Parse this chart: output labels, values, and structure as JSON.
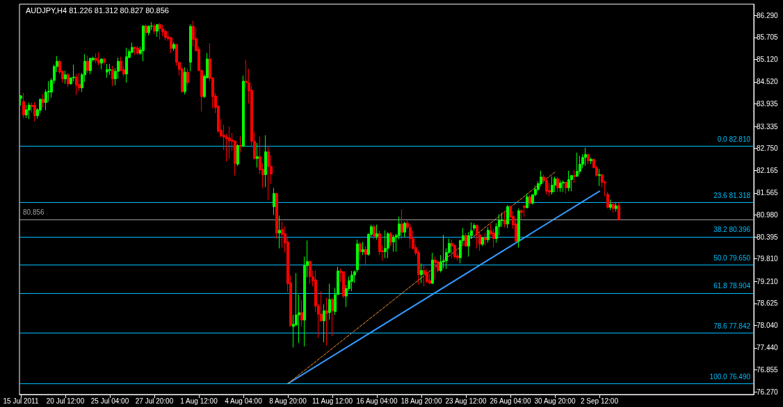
{
  "chart_data": {
    "type": "candlestick",
    "title": "AUDJPY,H4 81.226 81.312 80.827 80.856",
    "categories": [
      "15 Jul 2011",
      null,
      null,
      null,
      null,
      null,
      null,
      null,
      null,
      null,
      null,
      null,
      null,
      null,
      null,
      null,
      "20 Jul 12:00",
      null,
      null,
      null,
      null,
      null,
      null,
      null,
      null,
      null,
      null,
      null,
      null,
      null,
      null,
      null,
      "25 Jul 04:00",
      null,
      null,
      null,
      null,
      null,
      null,
      null,
      null,
      null,
      null,
      null,
      null,
      null,
      null,
      null,
      "27 Jul 20:00",
      null,
      null,
      null,
      null,
      null,
      null,
      null,
      null,
      null,
      null,
      null,
      null,
      null,
      null,
      null,
      "1 Aug 12:00",
      null,
      null,
      null,
      null,
      null,
      null,
      null,
      null,
      null,
      null,
      null,
      null,
      null,
      null,
      null,
      "4 Aug 04:00",
      null,
      null,
      null,
      null,
      null,
      null,
      null,
      null,
      null,
      null,
      null,
      null,
      null,
      null,
      null,
      "8 Aug 20:00",
      null,
      null,
      null,
      null,
      null,
      null,
      null,
      null,
      null,
      null,
      null,
      null,
      null,
      null,
      null,
      "11 Aug 12:00",
      null,
      null,
      null,
      null,
      null,
      null,
      null,
      null,
      null,
      null,
      null,
      null,
      null,
      null,
      null,
      "16 Aug 04:00",
      null,
      null,
      null,
      null,
      null,
      null,
      null,
      null,
      null,
      null,
      null,
      null,
      null,
      null,
      null,
      "18 Aug 20:00",
      null,
      null,
      null,
      null,
      null,
      null,
      null,
      null,
      null,
      null,
      null,
      null,
      null,
      null,
      null,
      "23 Aug 12:00",
      null,
      null,
      null,
      null,
      null,
      null,
      null,
      null,
      null,
      null,
      null,
      null,
      null,
      null,
      null,
      "26 Aug 04:00",
      null,
      null,
      null,
      null,
      null,
      null,
      null,
      null,
      null,
      null,
      null,
      null,
      null,
      null,
      null,
      "30 Aug 20:00",
      null,
      null,
      null,
      null,
      null,
      null,
      null,
      null,
      null,
      null,
      null,
      null,
      null,
      null,
      null,
      "2 Sep 12:00",
      null,
      null,
      null,
      null,
      null,
      null,
      null,
      null,
      null,
      null,
      null,
      null,
      null,
      null,
      null,
      null,
      null,
      null,
      null,
      null,
      null,
      null,
      null,
      null,
      null,
      null,
      null,
      null,
      null,
      null,
      null,
      null,
      null,
      null,
      null,
      null,
      null,
      null,
      null,
      null,
      null,
      null,
      null,
      null,
      null,
      null,
      null,
      null,
      null,
      null,
      null,
      null,
      null,
      null,
      null
    ],
    "ohlc": [
      [
        84.08,
        84.17,
        83.89,
        84.15
      ],
      [
        84.0,
        84.23,
        83.56,
        83.64
      ],
      [
        83.64,
        83.91,
        83.56,
        83.78
      ],
      [
        83.77,
        83.97,
        83.53,
        83.9
      ],
      [
        83.9,
        83.97,
        83.71,
        83.86
      ],
      [
        83.9,
        83.99,
        83.47,
        83.62
      ],
      [
        83.62,
        83.82,
        83.54,
        83.78
      ],
      [
        83.77,
        84.06,
        83.69,
        84.06
      ],
      [
        84.06,
        84.19,
        83.84,
        83.97
      ],
      [
        83.97,
        84.32,
        83.77,
        84.25
      ],
      [
        84.25,
        84.54,
        84.0,
        84.27
      ],
      [
        84.25,
        84.62,
        84.1,
        84.56
      ],
      [
        84.56,
        84.98,
        84.47,
        84.93
      ],
      [
        84.93,
        85.21,
        84.78,
        85.07
      ],
      [
        85.07,
        85.11,
        84.73,
        84.78
      ],
      [
        84.8,
        84.82,
        84.5,
        84.6
      ],
      [
        84.6,
        84.82,
        84.47,
        84.71
      ],
      [
        84.71,
        84.76,
        84.38,
        84.47
      ],
      [
        84.47,
        84.63,
        84.45,
        84.63
      ],
      [
        84.63,
        84.98,
        84.54,
        84.65
      ],
      [
        84.65,
        84.73,
        84.17,
        84.43
      ],
      [
        84.45,
        84.76,
        84.28,
        84.36
      ],
      [
        84.36,
        84.76,
        84.25,
        84.71
      ],
      [
        84.71,
        85.26,
        84.52,
        85.07
      ],
      [
        85.07,
        85.22,
        84.76,
        84.82
      ],
      [
        84.82,
        85.15,
        84.73,
        85.15
      ],
      [
        85.11,
        85.19,
        85.06,
        85.15
      ],
      [
        85.15,
        85.28,
        85.02,
        85.09
      ],
      [
        85.11,
        85.31,
        84.96,
        85.02
      ],
      [
        85.02,
        85.15,
        84.85,
        85.13
      ],
      [
        85.13,
        85.17,
        84.98,
        85.04
      ],
      [
        84.78,
        85.0,
        84.63,
        84.85
      ],
      [
        84.83,
        85.0,
        84.71,
        84.85
      ],
      [
        84.85,
        84.95,
        84.41,
        84.6
      ],
      [
        84.6,
        84.89,
        84.43,
        84.8
      ],
      [
        84.8,
        85.17,
        84.6,
        85.07
      ],
      [
        85.07,
        85.19,
        84.8,
        84.83
      ],
      [
        84.85,
        84.95,
        84.67,
        84.73
      ],
      [
        84.73,
        85.43,
        84.5,
        85.19
      ],
      [
        85.17,
        85.39,
        85.15,
        85.33
      ],
      [
        85.31,
        85.57,
        85.28,
        85.44
      ],
      [
        85.44,
        85.46,
        85.24,
        85.41
      ],
      [
        85.42,
        85.48,
        85.24,
        85.28
      ],
      [
        85.28,
        85.46,
        85.24,
        85.37
      ],
      [
        85.35,
        86.03,
        85.07,
        86.01
      ],
      [
        86.01,
        86.05,
        85.72,
        85.83
      ],
      [
        85.83,
        86.03,
        85.76,
        86.0
      ],
      [
        86.0,
        86.11,
        85.9,
        86.01
      ],
      [
        86.01,
        86.07,
        85.79,
        85.87
      ],
      [
        85.87,
        86.05,
        85.72,
        86.05
      ],
      [
        86.05,
        86.09,
        85.65,
        85.94
      ],
      [
        85.94,
        86.05,
        85.74,
        85.85
      ],
      [
        85.87,
        85.92,
        85.63,
        85.7
      ],
      [
        85.72,
        85.87,
        85.61,
        85.67
      ],
      [
        85.7,
        85.72,
        85.28,
        85.41
      ],
      [
        85.41,
        85.57,
        85.35,
        85.52
      ],
      [
        85.52,
        85.52,
        84.95,
        85.04
      ],
      [
        85.04,
        85.06,
        84.69,
        84.85
      ],
      [
        84.87,
        84.93,
        84.23,
        84.26
      ],
      [
        84.26,
        84.91,
        84.19,
        84.78
      ],
      [
        84.78,
        84.87,
        84.43,
        84.5
      ],
      [
        85.04,
        86.05,
        84.8,
        86.0
      ],
      [
        86.0,
        86.15,
        85.46,
        85.65
      ],
      [
        85.67,
        85.94,
        85.33,
        85.35
      ],
      [
        85.39,
        85.46,
        84.82,
        84.82
      ],
      [
        84.83,
        84.85,
        83.73,
        84.13
      ],
      [
        84.13,
        84.72,
        84.09,
        84.67
      ],
      [
        84.63,
        85.29,
        84.61,
        85.13
      ],
      [
        85.13,
        85.55,
        84.54,
        84.61
      ],
      [
        84.63,
        84.63,
        83.82,
        84.13
      ],
      [
        84.15,
        84.23,
        83.69,
        83.84
      ],
      [
        83.88,
        83.88,
        83.16,
        83.21
      ],
      [
        83.23,
        83.54,
        83.05,
        83.08
      ],
      [
        83.1,
        83.38,
        82.71,
        83.05
      ],
      [
        83.06,
        83.14,
        82.4,
        83.01
      ],
      [
        83.03,
        83.34,
        82.49,
        82.95
      ],
      [
        82.97,
        83.16,
        82.68,
        82.94
      ],
      [
        82.95,
        82.95,
        82.03,
        82.35
      ],
      [
        82.33,
        82.86,
        82.29,
        82.83
      ],
      [
        82.83,
        83.08,
        82.66,
        82.82
      ],
      [
        82.81,
        84.69,
        82.79,
        84.54
      ],
      [
        84.54,
        85.11,
        84.35,
        84.5
      ],
      [
        84.5,
        84.87,
        83.95,
        84.28
      ],
      [
        84.3,
        84.41,
        82.83,
        82.94
      ],
      [
        82.94,
        83.18,
        82.46,
        82.48
      ],
      [
        82.48,
        82.9,
        82.24,
        82.53
      ],
      [
        82.53,
        83.07,
        82.07,
        82.18
      ],
      [
        82.2,
        82.36,
        81.7,
        82.05
      ],
      [
        82.05,
        83.1,
        81.72,
        82.66
      ],
      [
        82.66,
        82.81,
        81.37,
        82.27
      ],
      [
        82.27,
        82.57,
        81.81,
        82.07
      ],
      [
        81.2,
        81.7,
        80.98,
        81.55
      ],
      [
        81.55,
        81.57,
        80.35,
        80.5
      ],
      [
        80.5,
        80.96,
        80.09,
        80.57
      ],
      [
        80.59,
        80.8,
        80.11,
        80.46
      ],
      [
        80.48,
        80.68,
        79.98,
        80.24
      ],
      [
        80.26,
        80.37,
        78.93,
        79.15
      ],
      [
        79.17,
        79.37,
        78.01,
        78.03
      ],
      [
        78.01,
        78.32,
        77.45,
        78.07
      ],
      [
        78.05,
        79.43,
        78.03,
        78.32
      ],
      [
        78.32,
        78.86,
        77.57,
        78.38
      ],
      [
        78.38,
        78.71,
        78.01,
        78.18
      ],
      [
        78.18,
        79.87,
        77.48,
        79.63
      ],
      [
        79.63,
        80.3,
        79.32,
        79.74
      ],
      [
        79.74,
        79.78,
        79.15,
        79.34
      ],
      [
        79.34,
        79.5,
        79.08,
        79.23
      ],
      [
        79.25,
        79.5,
        78.4,
        78.55
      ],
      [
        78.56,
        78.62,
        77.71,
        78.34
      ],
      [
        78.34,
        78.95,
        78.14,
        78.16
      ],
      [
        78.16,
        78.6,
        77.59,
        78.43
      ],
      [
        78.43,
        78.77,
        77.5,
        78.36
      ],
      [
        78.38,
        79.15,
        78.19,
        78.73
      ],
      [
        78.73,
        78.77,
        77.75,
        78.43
      ],
      [
        78.41,
        79.04,
        78.32,
        78.86
      ],
      [
        78.86,
        79.6,
        78.86,
        79.49
      ],
      [
        79.49,
        79.56,
        79.19,
        79.45
      ],
      [
        79.47,
        79.47,
        78.77,
        78.82
      ],
      [
        78.82,
        79.12,
        78.53,
        79.02
      ],
      [
        79.02,
        79.34,
        78.95,
        79.23
      ],
      [
        79.21,
        79.49,
        78.95,
        79.38
      ],
      [
        79.38,
        79.5,
        79.17,
        79.47
      ],
      [
        79.52,
        80.32,
        79.45,
        80.21
      ],
      [
        80.21,
        80.26,
        79.78,
        80.0
      ],
      [
        80.0,
        80.26,
        79.91,
        80.06
      ],
      [
        80.06,
        80.15,
        79.65,
        79.93
      ],
      [
        79.93,
        80.5,
        79.89,
        80.46
      ],
      [
        80.46,
        80.72,
        80.39,
        80.67
      ],
      [
        80.67,
        80.72,
        80.33,
        80.41
      ],
      [
        80.41,
        80.72,
        80.32,
        80.48
      ],
      [
        80.48,
        80.56,
        79.91,
        80.0
      ],
      [
        80.02,
        80.17,
        79.76,
        80.0
      ],
      [
        80.0,
        80.57,
        79.83,
        80.09
      ],
      [
        80.09,
        80.52,
        79.83,
        80.48
      ],
      [
        80.48,
        80.52,
        80.15,
        80.26
      ],
      [
        80.26,
        80.45,
        80.0,
        80.39
      ],
      [
        80.39,
        80.48,
        80.0,
        80.43
      ],
      [
        80.43,
        80.93,
        80.33,
        80.74
      ],
      [
        80.74,
        81.13,
        80.33,
        80.52
      ],
      [
        80.52,
        80.8,
        80.39,
        80.76
      ],
      [
        80.76,
        80.83,
        80.59,
        80.65
      ],
      [
        80.65,
        80.74,
        80.09,
        80.35
      ],
      [
        80.35,
        80.56,
        80.06,
        80.09
      ],
      [
        80.11,
        80.2,
        79.91,
        79.96
      ],
      [
        79.98,
        80.04,
        79.12,
        79.39
      ],
      [
        79.39,
        79.69,
        79.17,
        79.5
      ],
      [
        79.5,
        79.63,
        79.08,
        79.41
      ],
      [
        79.45,
        79.54,
        79.17,
        79.21
      ],
      [
        79.23,
        79.41,
        79.14,
        79.16
      ],
      [
        79.16,
        79.97,
        79.14,
        79.78
      ],
      [
        79.78,
        79.87,
        79.26,
        79.71
      ],
      [
        79.73,
        79.76,
        79.45,
        79.5
      ],
      [
        79.5,
        79.91,
        79.45,
        79.73
      ],
      [
        79.73,
        80.45,
        79.56,
        79.76
      ],
      [
        79.76,
        80.09,
        79.54,
        79.98
      ],
      [
        79.98,
        80.35,
        79.95,
        80.22
      ],
      [
        80.22,
        80.32,
        79.83,
        80.15
      ],
      [
        80.17,
        80.2,
        79.82,
        79.87
      ],
      [
        79.89,
        79.97,
        79.76,
        79.84
      ],
      [
        79.84,
        80.32,
        79.69,
        80.3
      ],
      [
        80.3,
        80.63,
        80.2,
        80.43
      ],
      [
        80.43,
        80.5,
        80.13,
        80.15
      ],
      [
        80.15,
        80.52,
        79.87,
        80.43
      ],
      [
        80.43,
        80.78,
        80.35,
        80.56
      ],
      [
        80.63,
        80.76,
        80.56,
        80.7
      ],
      [
        80.7,
        80.72,
        80.09,
        80.45
      ],
      [
        80.45,
        80.52,
        80.02,
        80.2
      ],
      [
        80.2,
        80.39,
        80.15,
        80.37
      ],
      [
        80.37,
        80.5,
        80.17,
        80.32
      ],
      [
        80.32,
        80.65,
        80.24,
        80.57
      ],
      [
        80.55,
        80.74,
        80.43,
        80.48
      ],
      [
        80.5,
        80.61,
        80.11,
        80.35
      ],
      [
        80.35,
        80.76,
        80.24,
        80.67
      ],
      [
        80.67,
        81.0,
        80.43,
        80.83
      ],
      [
        80.83,
        81.04,
        80.67,
        80.85
      ],
      [
        80.85,
        81.07,
        80.65,
        80.74
      ],
      [
        80.74,
        81.24,
        80.63,
        81.2
      ],
      [
        81.2,
        81.24,
        80.89,
        80.93
      ],
      [
        80.94,
        81.07,
        80.61,
        80.72
      ],
      [
        80.74,
        80.89,
        80.2,
        80.28
      ],
      [
        80.28,
        81.15,
        80.11,
        81.09
      ],
      [
        81.09,
        81.13,
        80.85,
        81.05
      ],
      [
        81.22,
        81.24,
        80.93,
        81.18
      ],
      [
        81.17,
        81.55,
        81.17,
        81.46
      ],
      [
        81.46,
        81.52,
        81.24,
        81.29
      ],
      [
        81.29,
        81.52,
        81.26,
        81.52
      ],
      [
        81.52,
        81.76,
        81.48,
        81.66
      ],
      [
        81.66,
        81.87,
        81.61,
        81.81
      ],
      [
        81.81,
        82.16,
        81.74,
        81.99
      ],
      [
        81.99,
        82.05,
        81.83,
        81.9
      ],
      [
        81.9,
        81.96,
        81.52,
        81.61
      ],
      [
        81.63,
        81.83,
        81.48,
        81.59
      ],
      [
        81.59,
        82.0,
        81.52,
        81.77
      ],
      [
        81.77,
        82.0,
        81.59,
        81.94
      ],
      [
        81.94,
        81.98,
        81.59,
        81.7
      ],
      [
        81.7,
        81.9,
        81.59,
        81.83
      ],
      [
        81.83,
        81.9,
        81.59,
        81.85
      ],
      [
        81.85,
        81.85,
        81.55,
        81.7
      ],
      [
        81.7,
        82.16,
        81.61,
        81.92
      ],
      [
        81.92,
        82.03,
        81.61,
        82.03
      ],
      [
        82.03,
        82.18,
        81.83,
        82.0
      ],
      [
        82.01,
        82.64,
        81.99,
        82.14
      ],
      [
        82.14,
        82.55,
        82.07,
        82.33
      ],
      [
        82.33,
        82.59,
        82.22,
        82.51
      ],
      [
        82.51,
        82.77,
        82.29,
        82.59
      ],
      [
        82.59,
        82.61,
        82.33,
        82.42
      ],
      [
        82.42,
        82.51,
        82.33,
        82.46
      ],
      [
        82.46,
        82.49,
        82.22,
        82.24
      ],
      [
        82.24,
        82.29,
        82.0,
        82.03
      ],
      [
        82.03,
        82.2,
        81.75,
        82.05
      ],
      [
        82.05,
        82.07,
        81.72,
        81.85
      ],
      [
        81.85,
        81.9,
        81.48,
        81.83
      ],
      [
        81.53,
        81.59,
        81.15,
        81.18
      ],
      [
        81.18,
        81.39,
        81.11,
        81.26
      ],
      [
        81.26,
        81.33,
        81.04,
        81.15
      ],
      [
        81.15,
        81.31,
        81.07,
        81.22
      ],
      [
        81.226,
        81.312,
        80.827,
        80.856
      ],
      null,
      null,
      null,
      null,
      null,
      null,
      null,
      null,
      null,
      null,
      null,
      null,
      null,
      null,
      null,
      null,
      null,
      null,
      null,
      null,
      null,
      null,
      null,
      null,
      null,
      null,
      null,
      null,
      null,
      null,
      null,
      null,
      null,
      null,
      null,
      null,
      null,
      null,
      null,
      null,
      null,
      null,
      null,
      null,
      null,
      null,
      null,
      null
    ],
    "colors": [
      "#00ff00",
      "#ff0000",
      "#00ff00",
      "#00ff00",
      "#ff0000",
      "#ff0000",
      "#00ff00",
      "#00ff00",
      "#ff0000",
      "#00ff00",
      "#00ff00",
      "#00ff00",
      "#00ff00",
      "#00ff00",
      "#ff0000",
      "#ff0000",
      "#00ff00",
      "#ff0000",
      "#00ff00",
      "#00ff00",
      "#ff0000",
      "#ff0000",
      "#00ff00",
      "#00ff00",
      "#ff0000",
      "#00ff00",
      "#00ff00",
      "#ff0000",
      "#ff0000",
      "#00ff00",
      "#ff0000",
      "#00ff00",
      "#00ff00",
      "#ff0000",
      "#00ff00",
      "#00ff00",
      "#ff0000",
      "#ff0000",
      "#00ff00",
      "#00ff00",
      "#00ff00",
      "#ff0000",
      "#ff0000",
      "#00ff00",
      "#00ff00",
      "#ff0000",
      "#00ff00",
      "#00ff00",
      "#ff0000",
      "#00ff00",
      "#ff0000",
      "#ff0000",
      "#ff0000",
      "#ff0000",
      "#ff0000",
      "#00ff00",
      "#ff0000",
      "#ff0000",
      "#ff0000",
      "#00ff00",
      "#ff0000",
      "#00ff00",
      "#ff0000",
      "#ff0000",
      "#ff0000",
      "#ff0000",
      "#00ff00",
      "#00ff00",
      "#ff0000",
      "#ff0000",
      "#ff0000",
      "#ff0000",
      "#ff0000",
      "#ff0000",
      "#ff0000",
      "#ff0000",
      "#ff0000",
      "#ff0000",
      "#00ff00",
      "#ff0000",
      "#00ff00",
      "#ff0000",
      "#ff0000",
      "#ff0000",
      "#ff0000",
      "#00ff00",
      "#ff0000",
      "#ff0000",
      "#00ff00",
      "#ff0000",
      "#ff0000",
      "#00ff00",
      "#ff0000",
      "#00ff00",
      "#ff0000",
      "#ff0000",
      "#ff0000",
      "#ff0000",
      "#00ff00",
      "#00ff00",
      "#00ff00",
      "#ff0000",
      "#00ff00",
      "#00ff00",
      "#ff0000",
      "#ff0000",
      "#ff0000",
      "#ff0000",
      "#ff0000",
      "#00ff00",
      "#ff0000",
      "#00ff00",
      "#ff0000",
      "#00ff00",
      "#00ff00",
      "#ff0000",
      "#ff0000",
      "#00ff00",
      "#00ff00",
      "#00ff00",
      "#00ff00",
      "#00ff00",
      "#ff0000",
      "#00ff00",
      "#ff0000",
      "#00ff00",
      "#00ff00",
      "#ff0000",
      "#00ff00",
      "#ff0000",
      "#ff0000",
      "#00ff00",
      "#00ff00",
      "#ff0000",
      "#00ff00",
      "#00ff00",
      "#00ff00",
      "#ff0000",
      "#00ff00",
      "#ff0000",
      "#ff0000",
      "#ff0000",
      "#ff0000",
      "#ff0000",
      "#00ff00",
      "#ff0000",
      "#ff0000",
      "#ff0000",
      "#00ff00",
      "#ff0000",
      "#ff0000",
      "#00ff00",
      "#00ff00",
      "#00ff00",
      "#00ff00",
      "#ff0000",
      "#ff0000",
      "#ff0000",
      "#00ff00",
      "#00ff00",
      "#ff0000",
      "#00ff00",
      "#00ff00",
      "#00ff00",
      "#ff0000",
      "#ff0000",
      "#00ff00",
      "#ff0000",
      "#00ff00",
      "#ff0000",
      "#ff0000",
      "#00ff00",
      "#00ff00",
      "#00ff00",
      "#ff0000",
      "#00ff00",
      "#ff0000",
      "#ff0000",
      "#ff0000",
      "#00ff00",
      "#ff0000",
      "#ff0000",
      "#00ff00",
      "#ff0000",
      "#00ff00",
      "#00ff00",
      "#00ff00",
      "#00ff00",
      "#ff0000",
      "#ff0000",
      "#ff0000",
      "#00ff00",
      "#00ff00",
      "#ff0000",
      "#00ff00",
      "#00ff00",
      "#ff0000",
      "#00ff00",
      "#00ff00",
      "#ff0000",
      "#00ff00",
      "#00ff00",
      "#00ff00",
      "#00ff00",
      "#ff0000",
      "#00ff00",
      "#ff0000",
      "#ff0000",
      "#00ff00",
      "#ff0000",
      "#ff0000",
      "#ff0000",
      "#00ff00",
      "#ff0000",
      "#00ff00",
      "#ff0000",
      null,
      null,
      null,
      null,
      null,
      null,
      null,
      null,
      null,
      null,
      null,
      null,
      null,
      null,
      null,
      null,
      null,
      null,
      null,
      null,
      null,
      null,
      null,
      null,
      null,
      null,
      null,
      null,
      null,
      null,
      null,
      null,
      null,
      null,
      null,
      null,
      null,
      null,
      null,
      null,
      null,
      null,
      null,
      null,
      null,
      null,
      null,
      null
    ],
    "series": [
      {
        "type": "line",
        "x": [
          "8 Aug 20:00",
          "2 Sep 12:00"
        ],
        "values": [
          76.49,
          81.61
        ],
        "color": "#3399ff",
        "line_style": "solid"
      },
      {
        "type": "line",
        "x": [
          "8 Aug 20:00",
          "30 Aug 20:00"
        ],
        "values": [
          76.49,
          82.12
        ],
        "color": "#ff9933",
        "line_style": "dashed"
      }
    ],
    "ref_lines": [
      {
        "axis": "y",
        "value": 82.81,
        "label": "0.0 82.810",
        "color": "#00bfff"
      },
      {
        "axis": "y",
        "value": 81.318,
        "label": "23.6 81.318",
        "color": "#00bfff"
      },
      {
        "axis": "y",
        "value": 80.396,
        "label": "38.2 80.396",
        "color": "#00bfff"
      },
      {
        "axis": "y",
        "value": 79.65,
        "label": "50.0 79.650",
        "color": "#00bfff"
      },
      {
        "axis": "y",
        "value": 78.904,
        "label": "61.8 78.904",
        "color": "#00bfff"
      },
      {
        "axis": "y",
        "value": 77.842,
        "label": "78.6 77.842",
        "color": "#00bfff"
      },
      {
        "axis": "y",
        "value": 76.49,
        "label": "100.0 76.490",
        "color": "#00bfff"
      },
      {
        "axis": "y",
        "value": 80.856,
        "label": "80.856",
        "color": "#a0a0a0"
      }
    ],
    "ylim": [
      76.2,
      86.59
    ],
    "yticks": [
      {
        "value": 86.29,
        "label": "86.290"
      },
      {
        "value": 85.705,
        "label": "85.705"
      },
      {
        "value": 85.12,
        "label": "85.120"
      },
      {
        "value": 84.52,
        "label": "84.520"
      },
      {
        "value": 83.935,
        "label": "83.935"
      },
      {
        "value": 83.335,
        "label": "83.335"
      },
      {
        "value": 82.75,
        "label": "82.750"
      },
      {
        "value": 82.165,
        "label": "82.165"
      },
      {
        "value": 81.565,
        "label": "81.565"
      },
      {
        "value": 80.98,
        "label": "80.980"
      },
      {
        "value": 80.395,
        "label": "80.395"
      },
      {
        "value": 79.81,
        "label": "79.810"
      },
      {
        "value": 79.21,
        "label": "79.210"
      },
      {
        "value": 78.625,
        "label": "78.625"
      },
      {
        "value": 78.04,
        "label": "78.040"
      },
      {
        "value": 77.44,
        "label": "77.440"
      },
      {
        "value": 76.855,
        "label": "76.855"
      },
      {
        "value": 76.27,
        "label": "76.270"
      }
    ]
  }
}
